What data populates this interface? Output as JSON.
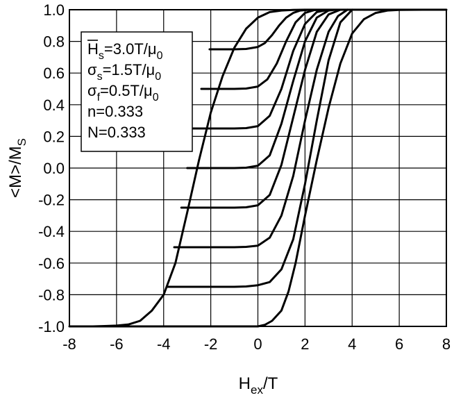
{
  "chart_data": {
    "type": "line",
    "title": "",
    "xlabel": {
      "main": "H",
      "sub": "ex",
      "tail": "/T"
    },
    "ylabel": {
      "main": "<M>/M",
      "sub": "S"
    },
    "xlim": [
      -8,
      8
    ],
    "ylim": [
      -1.0,
      1.0
    ],
    "xticks": [
      -8,
      -6,
      -4,
      -2,
      0,
      2,
      4,
      6,
      8
    ],
    "yticks": [
      -1.0,
      -0.8,
      -0.6,
      -0.4,
      -0.2,
      0.0,
      0.2,
      0.4,
      0.6,
      0.8,
      1.0
    ],
    "xtick_labels": [
      "-8",
      "-6",
      "-4",
      "-2",
      "0",
      "2",
      "4",
      "6",
      "8"
    ],
    "ytick_labels": [
      "-1.0",
      "-0.8",
      "-0.6",
      "-0.4",
      "-0.2",
      "0.0",
      "0.2",
      "0.4",
      "0.6",
      "0.8",
      "1.0"
    ],
    "grid": true,
    "legend_position": "top-left",
    "legend_lines": [
      {
        "sym": "H",
        "sub": "s",
        "tail": "=3.0T/μ",
        "tailsub": "0",
        "overbar": true
      },
      {
        "sym": "σ",
        "sub": "s",
        "tail": "=1.5T/μ",
        "tailsub": "0",
        "overbar": false
      },
      {
        "sym": "σ",
        "sub": "f",
        "tail": "=0.5T/μ",
        "tailsub": "0",
        "overbar": false
      },
      {
        "sym": "n=0.333",
        "sub": "",
        "tail": "",
        "tailsub": "",
        "overbar": false
      },
      {
        "sym": "N=0.333",
        "sub": "",
        "tail": "",
        "tailsub": "",
        "overbar": false
      }
    ],
    "series": [
      {
        "x": [
          -7.5,
          -7.0,
          -6.5,
          -6.0,
          -5.5,
          -5.0,
          -4.5,
          -4.0,
          -3.5,
          -3.0,
          -2.5,
          -2.0,
          -1.5,
          -1.0,
          -0.5,
          0.0,
          0.5,
          1.0,
          1.5,
          2.0,
          2.5,
          3.0,
          3.5,
          4.0,
          4.5,
          5.0,
          5.5,
          6.0,
          7.0,
          8.0
        ],
        "y": [
          -1.0,
          -1.0,
          -0.998,
          -0.995,
          -0.988,
          -0.965,
          -0.9,
          -0.8,
          -0.6,
          -0.28,
          0.05,
          0.35,
          0.58,
          0.76,
          0.88,
          0.95,
          0.985,
          0.995,
          0.999,
          1.0,
          1.0,
          1.0,
          1.0,
          1.0,
          1.0,
          1.0,
          1.0,
          1.0,
          1.0,
          1.0
        ]
      },
      {
        "x": [
          -8.0,
          -7.0,
          -6.0,
          -5.0,
          -4.0,
          -3.0,
          -2.0,
          -1.0,
          0.0,
          0.3,
          0.6,
          1.0,
          1.3,
          1.6,
          2.0,
          2.5,
          3.0,
          3.5,
          4.0,
          4.5,
          5.0,
          5.5,
          6.0,
          7.0,
          7.5
        ],
        "y": [
          -1.0,
          -1.0,
          -1.0,
          -1.0,
          -1.0,
          -1.0,
          -1.0,
          -1.0,
          -1.0,
          -0.99,
          -0.965,
          -0.9,
          -0.78,
          -0.6,
          -0.3,
          0.05,
          0.38,
          0.66,
          0.85,
          0.94,
          0.98,
          0.995,
          0.999,
          1.0,
          1.0
        ]
      },
      {
        "x": [
          -2.05,
          -1.5,
          -1.0,
          -0.5,
          0.0,
          0.3,
          0.6,
          0.9,
          1.2,
          1.5,
          1.8,
          2.2,
          2.6,
          3.0
        ],
        "y": [
          0.75,
          0.75,
          0.75,
          0.752,
          0.765,
          0.79,
          0.84,
          0.9,
          0.95,
          0.98,
          0.995,
          1.0,
          1.0,
          1.0
        ]
      },
      {
        "x": [
          -2.4,
          -1.5,
          -1.0,
          -0.5,
          0.0,
          0.4,
          0.8,
          1.2,
          1.6,
          2.0,
          2.4,
          2.8
        ],
        "y": [
          0.5,
          0.5,
          0.5,
          0.502,
          0.515,
          0.56,
          0.66,
          0.8,
          0.92,
          0.98,
          0.998,
          1.0
        ]
      },
      {
        "x": [
          -2.75,
          -2.0,
          -1.0,
          -0.5,
          0.0,
          0.5,
          1.0,
          1.5,
          2.0,
          2.5,
          3.0
        ],
        "y": [
          0.25,
          0.25,
          0.25,
          0.252,
          0.265,
          0.33,
          0.5,
          0.74,
          0.91,
          0.985,
          1.0
        ]
      },
      {
        "x": [
          -3.0,
          -2.0,
          -1.0,
          -0.5,
          0.0,
          0.5,
          1.0,
          1.5,
          2.0,
          2.5,
          3.0,
          3.3
        ],
        "y": [
          0.0,
          0.0,
          0.0,
          0.002,
          0.015,
          0.08,
          0.28,
          0.55,
          0.8,
          0.95,
          0.995,
          1.0
        ]
      },
      {
        "x": [
          -3.25,
          -2.0,
          -1.0,
          -0.5,
          0.0,
          0.5,
          1.0,
          1.5,
          2.0,
          2.5,
          3.0,
          3.5
        ],
        "y": [
          -0.25,
          -0.25,
          -0.25,
          -0.248,
          -0.235,
          -0.17,
          0.02,
          0.32,
          0.62,
          0.86,
          0.97,
          1.0
        ]
      },
      {
        "x": [
          -3.55,
          -2.0,
          -1.0,
          -0.5,
          0.0,
          0.5,
          1.0,
          1.5,
          2.0,
          2.5,
          3.0,
          3.4,
          3.8
        ],
        "y": [
          -0.5,
          -0.5,
          -0.5,
          -0.498,
          -0.49,
          -0.44,
          -0.3,
          -0.05,
          0.3,
          0.62,
          0.86,
          0.96,
          1.0
        ]
      },
      {
        "x": [
          -3.85,
          -2.0,
          -1.0,
          -0.5,
          0.0,
          0.5,
          1.0,
          1.5,
          2.0,
          2.5,
          3.0,
          3.5,
          4.0
        ],
        "y": [
          -0.75,
          -0.75,
          -0.75,
          -0.748,
          -0.74,
          -0.72,
          -0.64,
          -0.45,
          -0.1,
          0.3,
          0.68,
          0.92,
          1.0
        ]
      }
    ]
  }
}
